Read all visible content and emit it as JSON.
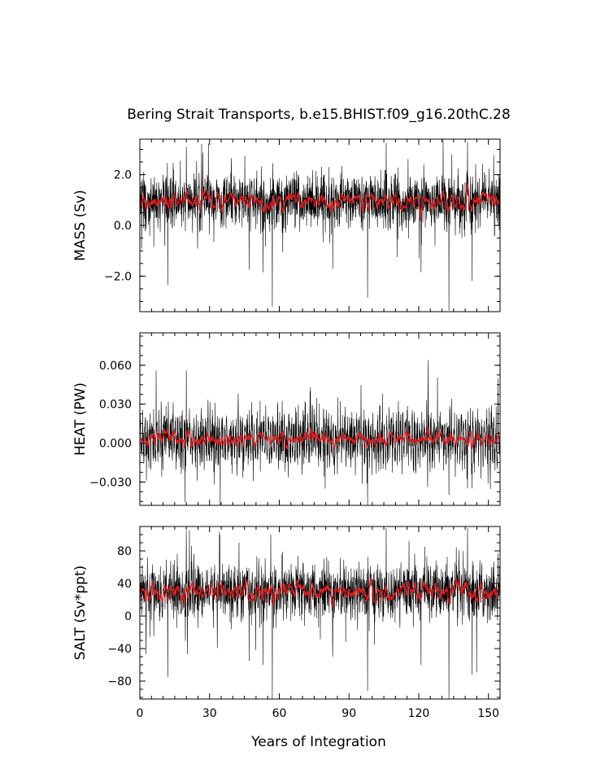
{
  "chart_data": {
    "type": "line",
    "title": "Bering Strait Transports, b.e15.BHIST.f09_g16.20thC.28",
    "xlabel": "Years of Integration",
    "xlim": [
      0,
      155
    ],
    "xticks": [
      0,
      30,
      60,
      90,
      120,
      150
    ],
    "xtick_labels": [
      "0",
      "30",
      "60",
      "90",
      "120",
      "150"
    ],
    "colors": {
      "monthly": "#000000",
      "annual_mean": "#e41a1c"
    },
    "panels": [
      {
        "ylabel": "MASS (Sv)",
        "ylim": [
          -3.4,
          3.4
        ],
        "yticks": [
          -2.0,
          0.0,
          2.0
        ],
        "ytick_labels": [
          "−2.0",
          "0.0",
          "2.0"
        ],
        "mean": 0.95,
        "noise": 0.5,
        "annual_amp": 0.18,
        "events": [
          [
            6,
            -0.85
          ],
          [
            12,
            -2.35
          ],
          [
            20,
            3.1
          ],
          [
            47,
            -1.75
          ],
          [
            53,
            -1.85
          ],
          [
            57,
            -3.2
          ],
          [
            83,
            -1.7
          ],
          [
            98,
            -2.85
          ],
          [
            106,
            3.25
          ],
          [
            121,
            -1.85
          ],
          [
            133,
            -3.35
          ],
          [
            141,
            3.3
          ],
          [
            143,
            -2.2
          ]
        ]
      },
      {
        "ylabel": "HEAT (PW)",
        "ylim": [
          -0.048,
          0.085
        ],
        "yticks": [
          -0.03,
          0.0,
          0.03,
          0.06
        ],
        "ytick_labels": [
          "−0.030",
          "0.000",
          "0.030",
          "0.060"
        ],
        "mean": 0.003,
        "noise": 0.009,
        "annual_amp": 0.011,
        "events": [
          [
            7,
            0.056
          ],
          [
            20,
            0.056
          ],
          [
            98,
            -0.048
          ],
          [
            124,
            0.064
          ],
          [
            133,
            -0.04
          ],
          [
            141,
            0.084
          ],
          [
            141,
            -0.035
          ],
          [
            143,
            -0.035
          ]
        ]
      },
      {
        "ylabel": "SALT (Sv*ppt)",
        "ylim": [
          -102,
          110
        ],
        "yticks": [
          -80,
          -40,
          0,
          40,
          80
        ],
        "ytick_labels": [
          "−80",
          "−40",
          "0",
          "40",
          "80"
        ],
        "mean": 30,
        "noise": 16,
        "annual_amp": 6,
        "events": [
          [
            6,
            -25
          ],
          [
            12,
            -75
          ],
          [
            20,
            105
          ],
          [
            47,
            -55
          ],
          [
            53,
            -60
          ],
          [
            57,
            -102
          ],
          [
            83,
            -50
          ],
          [
            98,
            -92
          ],
          [
            106,
            108
          ],
          [
            121,
            -60
          ],
          [
            133,
            -105
          ],
          [
            141,
            108
          ],
          [
            143,
            -72
          ]
        ]
      }
    ]
  }
}
